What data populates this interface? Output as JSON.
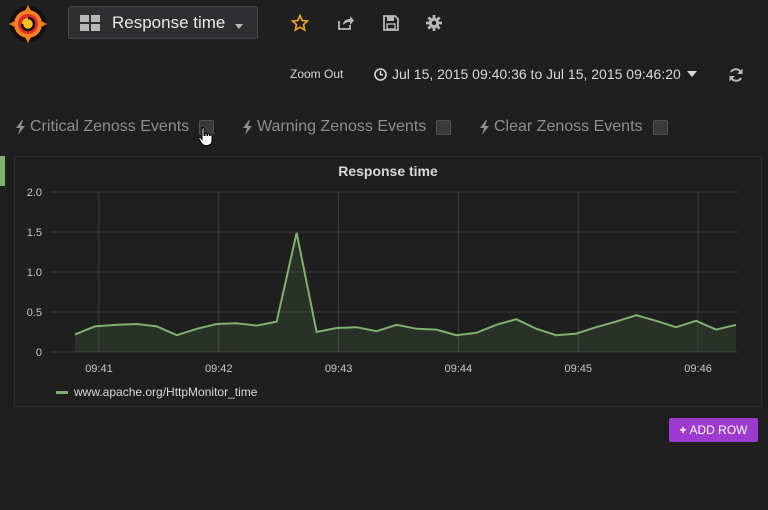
{
  "header": {
    "dashboard_title": "Response time",
    "icons": [
      "grafana-logo-icon",
      "dashboard-grid-icon",
      "star-icon",
      "share-icon",
      "save-icon",
      "gear-icon"
    ]
  },
  "timepicker": {
    "zoom_out_label": "Zoom Out",
    "range_label": "Jul 15, 2015 09:40:36 to Jul 15, 2015 09:46:20"
  },
  "annotations": [
    {
      "label": "Critical Zenoss Events"
    },
    {
      "label": "Warning Zenoss Events"
    },
    {
      "label": "Clear Zenoss Events"
    }
  ],
  "panel": {
    "title": "Response time"
  },
  "chart_data": {
    "type": "line",
    "title": "Response time",
    "x": [
      "09:40:48",
      "09:40:58",
      "09:41:09",
      "09:41:19",
      "09:41:29",
      "09:41:39",
      "09:41:49",
      "09:41:59",
      "09:42:09",
      "09:42:19",
      "09:42:29",
      "09:42:39",
      "09:42:49",
      "09:42:59",
      "09:43:09",
      "09:43:19",
      "09:43:29",
      "09:43:39",
      "09:43:49",
      "09:43:59",
      "09:44:09",
      "09:44:19",
      "09:44:29",
      "09:44:39",
      "09:44:49",
      "09:44:59",
      "09:45:09",
      "09:45:19",
      "09:45:29",
      "09:45:39",
      "09:45:49",
      "09:45:59",
      "09:46:09",
      "09:46:19"
    ],
    "series": [
      {
        "name": "www.apache.org/HttpMonitor_time",
        "values": [
          0.22,
          0.32,
          0.34,
          0.35,
          0.32,
          0.21,
          0.29,
          0.35,
          0.36,
          0.33,
          0.38,
          1.49,
          0.25,
          0.3,
          0.31,
          0.26,
          0.34,
          0.29,
          0.28,
          0.21,
          0.24,
          0.34,
          0.41,
          0.29,
          0.21,
          0.23,
          0.31,
          0.38,
          0.46,
          0.39,
          0.31,
          0.39,
          0.28,
          0.34
        ]
      }
    ],
    "x_ticks": [
      "09:41",
      "09:42",
      "09:43",
      "09:44",
      "09:45",
      "09:46"
    ],
    "y_ticks": [
      "0",
      "0.5",
      "1.0",
      "1.5",
      "2.0"
    ],
    "ylim": [
      0,
      2.0
    ],
    "xlim": [
      "09:40:36",
      "09:46:20"
    ],
    "grid": true,
    "legend": "bottom-left",
    "color": "#7eb26d"
  },
  "actions": {
    "add_row_label": "ADD ROW"
  }
}
